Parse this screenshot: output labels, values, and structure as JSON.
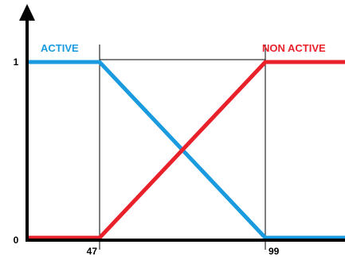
{
  "chart_data": {
    "type": "line",
    "title": "",
    "xlabel": "",
    "ylabel": "",
    "x_ticks": [
      {
        "value": 47,
        "label": "47"
      },
      {
        "value": 99,
        "label": "99"
      }
    ],
    "y_ticks": [
      {
        "value": 0,
        "label": "0"
      },
      {
        "value": 1,
        "label": "1"
      }
    ],
    "ylim": [
      0,
      1
    ],
    "grid": false,
    "series": [
      {
        "name": "ACTIVE",
        "color": "#1a9be0",
        "points": [
          [
            0,
            1
          ],
          [
            47,
            1
          ],
          [
            99,
            0
          ],
          [
            125,
            0
          ]
        ]
      },
      {
        "name": "NON ACTIVE",
        "color": "#e8212b",
        "points": [
          [
            0,
            0
          ],
          [
            47,
            0
          ],
          [
            99,
            1
          ],
          [
            125,
            1
          ]
        ]
      }
    ]
  }
}
